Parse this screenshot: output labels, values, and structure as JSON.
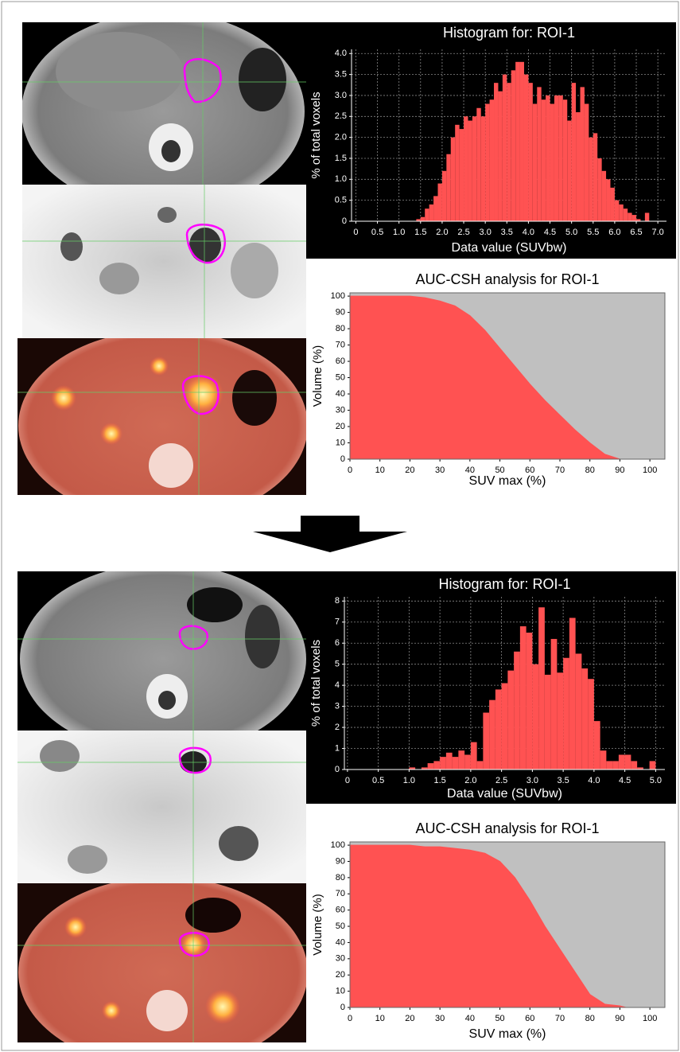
{
  "chart_data": [
    {
      "type": "histogram",
      "title": "Histogram for: ROI-1",
      "xlabel": "Data value (SUVbw)",
      "ylabel": "% of total voxels",
      "bins": [
        1.4,
        1.5,
        1.6,
        1.7,
        1.8,
        1.9,
        2.0,
        2.1,
        2.2,
        2.3,
        2.4,
        2.5,
        2.6,
        2.7,
        2.8,
        2.9,
        3.0,
        3.1,
        3.2,
        3.3,
        3.4,
        3.5,
        3.6,
        3.7,
        3.8,
        3.9,
        4.0,
        4.1,
        4.2,
        4.3,
        4.4,
        4.5,
        4.6,
        4.7,
        4.8,
        4.9,
        5.0,
        5.1,
        5.2,
        5.3,
        5.4,
        5.5,
        5.6,
        5.7,
        5.8,
        5.9,
        6.0,
        6.1,
        6.2,
        6.3,
        6.4,
        6.5,
        6.6,
        6.7,
        6.8
      ],
      "values": [
        0.05,
        0.1,
        0.3,
        0.4,
        0.6,
        0.9,
        1.2,
        1.6,
        2.0,
        2.3,
        2.2,
        2.5,
        2.4,
        2.5,
        2.7,
        2.5,
        2.8,
        2.9,
        3.3,
        3.1,
        3.5,
        3.3,
        3.6,
        3.8,
        3.8,
        3.5,
        3.3,
        2.8,
        3.2,
        2.9,
        3.0,
        2.8,
        3.0,
        3.0,
        2.9,
        2.4,
        3.3,
        2.6,
        3.2,
        2.8,
        2.0,
        2.1,
        1.5,
        1.2,
        1.0,
        0.8,
        0.5,
        0.4,
        0.3,
        0.2,
        0.15,
        0.05,
        0,
        0.2
      ],
      "color": "#ff5252",
      "background": "#000000",
      "grid": true,
      "xlim": [
        -0.1,
        7.2
      ],
      "ylim": [
        0,
        4.1
      ],
      "xticks": [
        0,
        0.5,
        {
          "value": 1,
          "label": "1.0"
        },
        1.5,
        {
          "value": 2,
          "label": "2.0"
        },
        2.5,
        {
          "value": 3,
          "label": "3.0"
        },
        3.5,
        {
          "value": 4,
          "label": "4.0"
        },
        4.5,
        {
          "value": 5,
          "label": "5.0"
        },
        5.5,
        {
          "value": 6,
          "label": "6.0"
        },
        6.5,
        {
          "value": 7,
          "label": "7.0"
        }
      ],
      "yticks": [
        0,
        0.5,
        {
          "value": 1,
          "label": "1.0"
        },
        1.5,
        {
          "value": 2,
          "label": "2.0"
        },
        2.5,
        {
          "value": 3,
          "label": "3.0"
        },
        3.5,
        {
          "value": 4,
          "label": "4.0"
        }
      ]
    },
    {
      "type": "area",
      "title": "AUC-CSH analysis for ROI-1",
      "xlabel": "SUV max (%)",
      "ylabel": "Volume (%)",
      "x": [
        0,
        5,
        10,
        15,
        20,
        25,
        30,
        35,
        40,
        45,
        50,
        55,
        60,
        65,
        70,
        75,
        80,
        85,
        90
      ],
      "values": [
        100,
        100,
        100,
        100,
        100,
        99,
        97,
        94,
        88,
        79,
        68,
        57,
        46,
        36,
        27,
        18,
        10,
        3,
        0
      ],
      "color": "#ff5252",
      "background": "#c0c0c0",
      "grid": false,
      "xlim": [
        0,
        105
      ],
      "ylim": [
        0,
        102
      ],
      "xticks": [
        0,
        10,
        20,
        30,
        40,
        50,
        60,
        70,
        80,
        90,
        100
      ],
      "yticks": [
        0,
        10,
        20,
        30,
        40,
        50,
        60,
        70,
        80,
        90,
        100
      ]
    },
    {
      "type": "histogram",
      "title": "Histogram for: ROI-1",
      "xlabel": "Data value (SUVbw)",
      "ylabel": "% of total voxels",
      "bins": [
        1.0,
        1.1,
        1.2,
        1.3,
        1.4,
        1.5,
        1.6,
        1.7,
        1.8,
        1.9,
        2.0,
        2.1,
        2.2,
        2.3,
        2.4,
        2.5,
        2.6,
        2.7,
        2.8,
        2.9,
        3.0,
        3.1,
        3.2,
        3.3,
        3.4,
        3.5,
        3.6,
        3.7,
        3.8,
        3.9,
        4.0,
        4.1,
        4.2,
        4.3,
        4.4,
        4.5,
        4.6,
        4.7,
        4.8,
        4.9,
        5.0
      ],
      "values": [
        0.1,
        0,
        0.1,
        0.3,
        0.4,
        0.6,
        0.8,
        0.6,
        0.9,
        0.7,
        1.3,
        0.4,
        2.7,
        3.3,
        3.8,
        4.1,
        4.7,
        5.6,
        6.8,
        6.5,
        5.0,
        7.7,
        4.5,
        6.2,
        4.6,
        5.3,
        7.2,
        5.5,
        4.8,
        4.3,
        2.3,
        0.9,
        0.4,
        0.4,
        0.7,
        0.7,
        0.4,
        0.1,
        0,
        0.4
      ],
      "color": "#ff5252",
      "background": "#000000",
      "grid": true,
      "xlim": [
        -0.05,
        5.15
      ],
      "ylim": [
        0,
        8.2
      ],
      "xticks": [
        0,
        0.5,
        {
          "value": 1,
          "label": "1.0"
        },
        1.5,
        {
          "value": 2,
          "label": "2.0"
        },
        2.5,
        {
          "value": 3,
          "label": "3.0"
        },
        3.5,
        {
          "value": 4,
          "label": "4.0"
        },
        4.5,
        {
          "value": 5,
          "label": "5.0"
        }
      ],
      "yticks": [
        0,
        1,
        2,
        3,
        4,
        5,
        6,
        7,
        8
      ]
    },
    {
      "type": "area",
      "title": "AUC-CSH analysis for ROI-1",
      "xlabel": "SUV max (%)",
      "ylabel": "Volume (%)",
      "x": [
        0,
        10,
        20,
        25,
        30,
        35,
        40,
        45,
        50,
        55,
        60,
        65,
        70,
        75,
        80,
        85,
        90,
        92
      ],
      "values": [
        100,
        100,
        100,
        99,
        99,
        98,
        97,
        95,
        90,
        80,
        66,
        50,
        36,
        22,
        8,
        2,
        1,
        0
      ],
      "color": "#ff5252",
      "background": "#c0c0c0",
      "grid": false,
      "xlim": [
        0,
        105
      ],
      "ylim": [
        0,
        102
      ],
      "xticks": [
        0,
        10,
        20,
        30,
        40,
        50,
        60,
        70,
        80,
        90,
        100
      ],
      "yticks": [
        0,
        10,
        20,
        30,
        40,
        50,
        60,
        70,
        80,
        90,
        100
      ]
    }
  ]
}
